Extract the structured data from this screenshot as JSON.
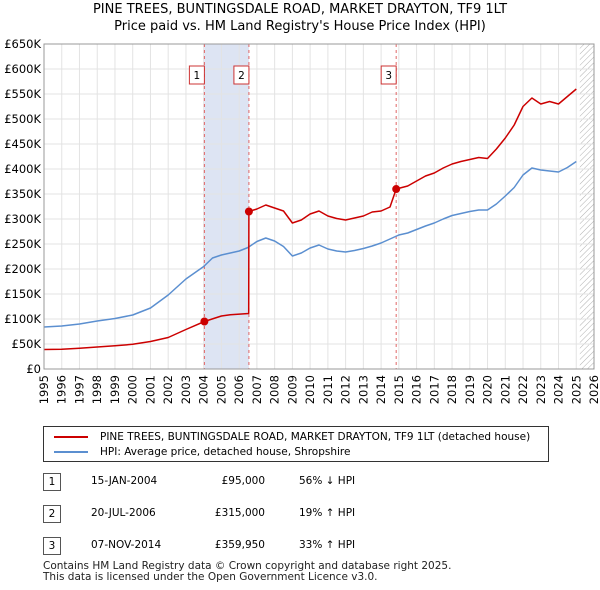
{
  "title_line1": "PINE TREES, BUNTINGSDALE ROAD, MARKET DRAYTON, TF9 1LT",
  "title_line2": "Price paid vs. HM Land Registry's House Price Index (HPI)",
  "chart_data": {
    "type": "line",
    "title": "PINE TREES, BUNTINGSDALE ROAD, MARKET DRAYTON, TF9 1LT",
    "subtitle": "Price paid vs. HM Land Registry's House Price Index (HPI)",
    "xlabel": "",
    "ylabel": "",
    "xlim": [
      1995,
      2026
    ],
    "ylim": [
      0,
      650000
    ],
    "y_ticks": [
      {
        "value": 0,
        "label": "£0"
      },
      {
        "value": 50000,
        "label": "£50K"
      },
      {
        "value": 100000,
        "label": "£100K"
      },
      {
        "value": 150000,
        "label": "£150K"
      },
      {
        "value": 200000,
        "label": "£200K"
      },
      {
        "value": 250000,
        "label": "£250K"
      },
      {
        "value": 300000,
        "label": "£300K"
      },
      {
        "value": 350000,
        "label": "£350K"
      },
      {
        "value": 400000,
        "label": "£400K"
      },
      {
        "value": 450000,
        "label": "£450K"
      },
      {
        "value": 500000,
        "label": "£500K"
      },
      {
        "value": 550000,
        "label": "£550K"
      },
      {
        "value": 600000,
        "label": "£600K"
      },
      {
        "value": 650000,
        "label": "£650K"
      }
    ],
    "x_ticks": [
      "1995",
      "1996",
      "1997",
      "1998",
      "1999",
      "2000",
      "2001",
      "2002",
      "2003",
      "2004",
      "2005",
      "2006",
      "2007",
      "2008",
      "2009",
      "2010",
      "2011",
      "2012",
      "2013",
      "2014",
      "2015",
      "2016",
      "2017",
      "2018",
      "2019",
      "2020",
      "2021",
      "2022",
      "2023",
      "2024",
      "2025",
      "2026"
    ],
    "grid": true,
    "future_hatch_from": 2025.2,
    "series": [
      {
        "name": "PINE TREES, BUNTINGSDALE ROAD, MARKET DRAYTON, TF9 1LT (detached house)",
        "color": "#cc0000",
        "points": [
          [
            1995.0,
            39000
          ],
          [
            1996.0,
            39500
          ],
          [
            1997.0,
            41500
          ],
          [
            1998.0,
            44000
          ],
          [
            1999.0,
            46500
          ],
          [
            2000.0,
            49500
          ],
          [
            2001.0,
            55000
          ],
          [
            2002.0,
            63000
          ],
          [
            2003.0,
            79000
          ],
          [
            2004.04,
            95000
          ],
          [
            2005.0,
            106000
          ],
          [
            2005.5,
            108500
          ],
          [
            2006.54,
            111000
          ],
          [
            2006.55,
            315000
          ],
          [
            2007.0,
            320000
          ],
          [
            2007.5,
            328000
          ],
          [
            2008.0,
            322000
          ],
          [
            2008.5,
            316000
          ],
          [
            2009.0,
            292000
          ],
          [
            2009.5,
            298000
          ],
          [
            2010.0,
            310000
          ],
          [
            2010.5,
            316000
          ],
          [
            2011.0,
            306000
          ],
          [
            2011.5,
            301000
          ],
          [
            2012.0,
            298000
          ],
          [
            2012.5,
            302000
          ],
          [
            2013.0,
            306000
          ],
          [
            2013.5,
            314000
          ],
          [
            2014.0,
            316000
          ],
          [
            2014.5,
            324000
          ],
          [
            2014.85,
            359950
          ],
          [
            2015.5,
            366000
          ],
          [
            2016.0,
            376000
          ],
          [
            2016.5,
            386000
          ],
          [
            2017.0,
            392000
          ],
          [
            2017.5,
            402000
          ],
          [
            2018.0,
            410000
          ],
          [
            2018.5,
            415000
          ],
          [
            2019.0,
            419000
          ],
          [
            2019.5,
            423000
          ],
          [
            2020.0,
            421000
          ],
          [
            2020.5,
            440000
          ],
          [
            2021.0,
            462000
          ],
          [
            2021.5,
            488000
          ],
          [
            2022.0,
            525000
          ],
          [
            2022.5,
            542000
          ],
          [
            2023.0,
            530000
          ],
          [
            2023.5,
            535000
          ],
          [
            2024.0,
            530000
          ],
          [
            2024.5,
            545000
          ],
          [
            2025.0,
            560000
          ]
        ]
      },
      {
        "name": "HPI: Average price, detached house, Shropshire",
        "color": "#5b8fd0",
        "points": [
          [
            1995.0,
            84000
          ],
          [
            1996.0,
            86000
          ],
          [
            1997.0,
            90000
          ],
          [
            1998.0,
            96000
          ],
          [
            1999.0,
            101000
          ],
          [
            2000.0,
            108000
          ],
          [
            2001.0,
            122000
          ],
          [
            2002.0,
            148000
          ],
          [
            2003.0,
            180000
          ],
          [
            2004.0,
            205000
          ],
          [
            2004.5,
            222000
          ],
          [
            2005.0,
            228000
          ],
          [
            2005.5,
            232000
          ],
          [
            2006.0,
            236000
          ],
          [
            2006.5,
            243000
          ],
          [
            2007.0,
            255000
          ],
          [
            2007.5,
            262000
          ],
          [
            2008.0,
            256000
          ],
          [
            2008.5,
            245000
          ],
          [
            2009.0,
            226000
          ],
          [
            2009.5,
            232000
          ],
          [
            2010.0,
            242000
          ],
          [
            2010.5,
            248000
          ],
          [
            2011.0,
            240000
          ],
          [
            2011.5,
            236000
          ],
          [
            2012.0,
            234000
          ],
          [
            2012.5,
            237000
          ],
          [
            2013.0,
            241000
          ],
          [
            2013.5,
            246000
          ],
          [
            2014.0,
            252000
          ],
          [
            2014.5,
            260000
          ],
          [
            2015.0,
            268000
          ],
          [
            2015.5,
            272000
          ],
          [
            2016.0,
            279000
          ],
          [
            2016.5,
            286000
          ],
          [
            2017.0,
            292000
          ],
          [
            2017.5,
            300000
          ],
          [
            2018.0,
            307000
          ],
          [
            2018.5,
            311000
          ],
          [
            2019.0,
            315000
          ],
          [
            2019.5,
            318000
          ],
          [
            2020.0,
            318000
          ],
          [
            2020.5,
            330000
          ],
          [
            2021.0,
            346000
          ],
          [
            2021.5,
            363000
          ],
          [
            2022.0,
            388000
          ],
          [
            2022.5,
            402000
          ],
          [
            2023.0,
            398000
          ],
          [
            2023.5,
            396000
          ],
          [
            2024.0,
            394000
          ],
          [
            2024.5,
            403000
          ],
          [
            2025.0,
            415000
          ]
        ]
      }
    ],
    "sale_markers": [
      {
        "label": "1",
        "x": 2004.04,
        "price": 95000
      },
      {
        "label": "2",
        "x": 2006.55,
        "price": 315000
      },
      {
        "label": "3",
        "x": 2014.85,
        "price": 359950
      }
    ]
  },
  "legend": {
    "property_label": "PINE TREES, BUNTINGSDALE ROAD, MARKET DRAYTON, TF9 1LT (detached house)",
    "hpi_label": "HPI: Average price, detached house, Shropshire",
    "property_color": "#cc0000",
    "hpi_color": "#5b8fd0"
  },
  "sales": [
    {
      "num": "1",
      "date": "15-JAN-2004",
      "price": "£95,000",
      "hpi": "56% ↓ HPI"
    },
    {
      "num": "2",
      "date": "20-JUL-2006",
      "price": "£315,000",
      "hpi": "19% ↑ HPI"
    },
    {
      "num": "3",
      "date": "07-NOV-2014",
      "price": "£359,950",
      "hpi": "33% ↑ HPI"
    }
  ],
  "footer_line1": "Contains HM Land Registry data © Crown copyright and database right 2025.",
  "footer_line2": "This data is licensed under the Open Government Licence v3.0."
}
